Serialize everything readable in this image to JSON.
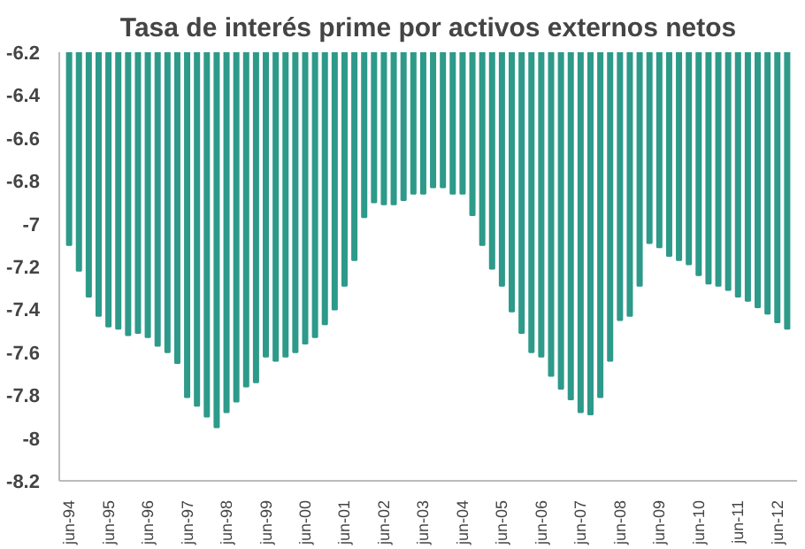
{
  "chart_data": {
    "type": "bar",
    "title": "Tasa de interés prime por activos externos netos",
    "categories": [
      "jun-94",
      null,
      null,
      null,
      "jun-95",
      null,
      null,
      null,
      "jun-96",
      null,
      null,
      null,
      "jun-97",
      null,
      null,
      null,
      "jun-98",
      null,
      null,
      null,
      "jun-99",
      null,
      null,
      null,
      "jun-00",
      null,
      null,
      null,
      "jun-01",
      null,
      null,
      null,
      "jun-02",
      null,
      null,
      null,
      "jun-03",
      null,
      null,
      null,
      "jun-04",
      null,
      null,
      null,
      "jun-05",
      null,
      null,
      null,
      "jun-06",
      null,
      null,
      null,
      "jun-07",
      null,
      null,
      null,
      "jun-08",
      null,
      null,
      null,
      "jun-09",
      null,
      null,
      null,
      "jun-10",
      null,
      null,
      null,
      "jun-11",
      null,
      null,
      null,
      "jun-12",
      null
    ],
    "values": [
      -7.1,
      -7.22,
      -7.34,
      -7.43,
      -7.48,
      -7.49,
      -7.52,
      -7.51,
      -7.53,
      -7.57,
      -7.6,
      -7.65,
      -7.81,
      -7.85,
      -7.9,
      -7.95,
      -7.88,
      -7.83,
      -7.76,
      -7.74,
      -7.62,
      -7.64,
      -7.62,
      -7.6,
      -7.56,
      -7.53,
      -7.47,
      -7.4,
      -7.29,
      -7.17,
      -6.97,
      -6.9,
      -6.91,
      -6.91,
      -6.89,
      -6.86,
      -6.86,
      -6.83,
      -6.83,
      -6.86,
      -6.86,
      -6.96,
      -7.1,
      -7.21,
      -7.29,
      -7.41,
      -7.51,
      -7.6,
      -7.62,
      -7.71,
      -7.77,
      -7.82,
      -7.88,
      -7.89,
      -7.81,
      -7.64,
      -7.45,
      -7.43,
      -7.29,
      -7.09,
      -7.11,
      -7.15,
      -7.17,
      -7.19,
      -7.24,
      -7.28,
      -7.29,
      -7.31,
      -7.34,
      -7.36,
      -7.39,
      -7.42,
      -7.46,
      -7.49
    ],
    "color": "#2e9a8a",
    "ylim": [
      -8.2,
      -6.2
    ],
    "yticks": [
      -8.2,
      -8,
      -7.8,
      -7.6,
      -7.4,
      -7.2,
      -7,
      -6.8,
      -6.6,
      -6.4,
      -6.2
    ],
    "grid": false
  }
}
